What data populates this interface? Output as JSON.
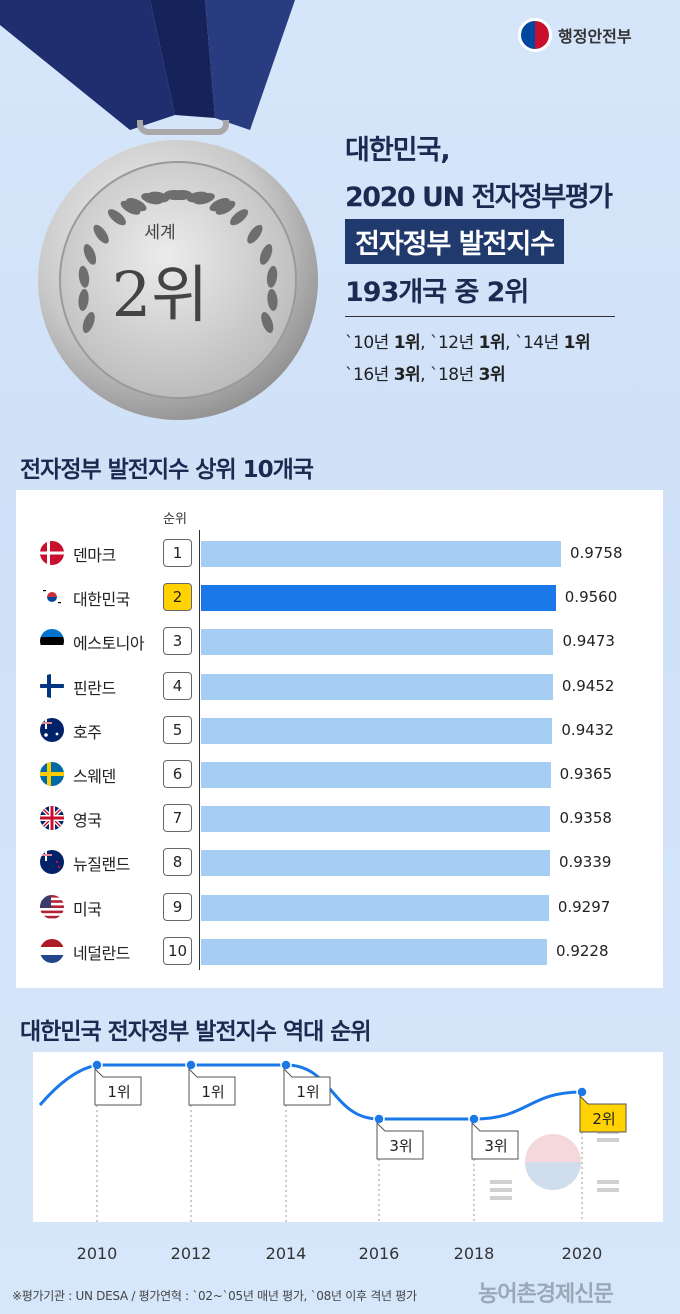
{
  "ministry": {
    "name": "행정안전부"
  },
  "medal": {
    "small_text": "세계",
    "big_text": "2위"
  },
  "headline": {
    "line1": "대한민국,",
    "line2": "2020 UN 전자정부평가",
    "line3": "전자정부 발전지수",
    "line4": "193개국 중 2위"
  },
  "history": {
    "line1": [
      {
        "pre": "`10년 ",
        "rank": "1위",
        "post": ", "
      },
      {
        "pre": "`12년 ",
        "rank": "1위",
        "post": ", "
      },
      {
        "pre": "`14년 ",
        "rank": "1위",
        "post": ""
      }
    ],
    "line2": [
      {
        "pre": "`16년 ",
        "rank": "3위",
        "post": ", "
      },
      {
        "pre": "`18년 ",
        "rank": "3위",
        "post": ""
      }
    ]
  },
  "section1": {
    "title": "전자정부 발전지수 상위 10개국",
    "rank_label": "순위"
  },
  "section2": {
    "title": "대한민국 전자정부 발전지수 역대 순위"
  },
  "colors": {
    "bar": "#a6cef5",
    "bar_highlight": "#1a78e8",
    "rank_highlight": "#ffd200",
    "line": "#1a78e8",
    "navy": "#1a2a50"
  },
  "chart_data": [
    {
      "type": "bar",
      "orientation": "horizontal",
      "title": "전자정부 발전지수 상위 10개국",
      "categories": [
        "덴마크",
        "대한민국",
        "에스토니아",
        "핀란드",
        "호주",
        "스웨덴",
        "영국",
        "뉴질랜드",
        "미국",
        "네덜란드"
      ],
      "ranks": [
        "1",
        "2",
        "3",
        "4",
        "5",
        "6",
        "7",
        "8",
        "9",
        "10"
      ],
      "values": [
        0.9758,
        0.956,
        0.9473,
        0.9452,
        0.9432,
        0.9365,
        0.9358,
        0.9339,
        0.9297,
        0.9228
      ],
      "value_labels": [
        "0.9758",
        "0.9560",
        "0.9473",
        "0.9452",
        "0.9432",
        "0.9365",
        "0.9358",
        "0.9339",
        "0.9297",
        "0.9228"
      ],
      "highlight": "대한민국",
      "flags": [
        "denmark-flag",
        "korea-flag",
        "estonia-flag",
        "finland-flag",
        "australia-flag",
        "sweden-flag",
        "uk-flag",
        "newzealand-flag",
        "usa-flag",
        "netherlands-flag"
      ]
    },
    {
      "type": "line",
      "title": "대한민국 전자정부 발전지수 역대 순위",
      "x": [
        "2010",
        "2012",
        "2014",
        "2016",
        "2018",
        "2020"
      ],
      "y": [
        1,
        1,
        1,
        3,
        3,
        2
      ],
      "labels": [
        "1위",
        "1위",
        "1위",
        "3위",
        "3위",
        "2위"
      ],
      "highlight_index": 5,
      "y_inverted": true
    }
  ],
  "footnote": "※평가기관 : UN DESA / 평가연혁 : `02~`05년 매년 평가, `08년 이후 격년 평가",
  "publisher": "농어촌경제신문"
}
